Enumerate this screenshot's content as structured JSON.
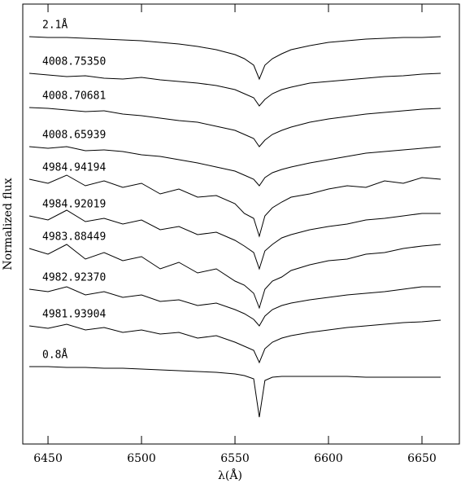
{
  "chart_data": {
    "type": "line",
    "xlabel": "λ(Å)",
    "ylabel": "Normalized flux",
    "xlim": [
      6436.5,
      6670
    ],
    "ylim": [
      0,
      540
    ],
    "xticks": [
      6450,
      6500,
      6550,
      6600,
      6650
    ],
    "x": [
      6440,
      6450,
      6460,
      6470,
      6480,
      6490,
      6500,
      6510,
      6520,
      6530,
      6540,
      6550,
      6555,
      6560,
      6563,
      6566,
      6570,
      6575,
      6580,
      6590,
      6600,
      6610,
      6620,
      6630,
      6640,
      6650,
      6660
    ],
    "series": [
      {
        "name": "2.1Å",
        "color": "#000000",
        "values": [
          500,
          499,
          499,
          498,
          497,
          496,
          495,
          493,
          491,
          488,
          484,
          478,
          473,
          465,
          448,
          465,
          473,
          479,
          484,
          489,
          493,
          495,
          497,
          498,
          499,
          499,
          500
        ]
      },
      {
        "name": "4008.75350",
        "color": "#000000",
        "values": [
          455,
          453,
          451,
          452,
          449,
          448,
          450,
          447,
          445,
          443,
          440,
          435,
          430,
          425,
          415,
          423,
          430,
          435,
          438,
          443,
          445,
          447,
          449,
          451,
          452,
          454,
          455
        ]
      },
      {
        "name": "4008.70681",
        "color": "#000000",
        "values": [
          413,
          412,
          410,
          408,
          409,
          405,
          403,
          400,
          397,
          395,
          390,
          385,
          380,
          375,
          365,
          373,
          380,
          385,
          389,
          395,
          399,
          402,
          405,
          407,
          409,
          411,
          412
        ]
      },
      {
        "name": "4008.65939",
        "color": "#000000",
        "values": [
          365,
          363,
          365,
          360,
          361,
          359,
          355,
          353,
          349,
          345,
          340,
          335,
          330,
          325,
          317,
          327,
          333,
          337,
          340,
          345,
          349,
          353,
          357,
          359,
          361,
          363,
          365
        ]
      },
      {
        "name": "4984.94194",
        "color": "#000000",
        "values": [
          325,
          320,
          330,
          317,
          323,
          315,
          320,
          307,
          313,
          303,
          305,
          295,
          283,
          277,
          255,
          280,
          290,
          297,
          303,
          307,
          313,
          317,
          315,
          323,
          320,
          327,
          325
        ]
      },
      {
        "name": "4984.92019",
        "color": "#000000",
        "values": [
          280,
          275,
          287,
          273,
          277,
          270,
          275,
          263,
          267,
          257,
          260,
          250,
          243,
          235,
          215,
          237,
          245,
          253,
          257,
          263,
          267,
          270,
          275,
          277,
          280,
          283,
          283
        ]
      },
      {
        "name": "4983.88449",
        "color": "#000000",
        "values": [
          240,
          233,
          245,
          227,
          235,
          225,
          230,
          215,
          223,
          210,
          215,
          200,
          195,
          185,
          167,
          190,
          200,
          205,
          213,
          220,
          225,
          227,
          233,
          235,
          240,
          243,
          245
        ]
      },
      {
        "name": "4982.92370",
        "color": "#000000",
        "values": [
          190,
          187,
          193,
          183,
          187,
          180,
          183,
          175,
          177,
          170,
          173,
          165,
          160,
          153,
          145,
          157,
          165,
          170,
          173,
          177,
          180,
          183,
          185,
          187,
          190,
          193,
          193
        ]
      },
      {
        "name": "4981.93904",
        "color": "#000000",
        "values": [
          145,
          142,
          147,
          140,
          143,
          137,
          140,
          135,
          137,
          130,
          133,
          125,
          120,
          115,
          100,
          117,
          125,
          130,
          133,
          137,
          140,
          143,
          145,
          147,
          149,
          150,
          152
        ]
      },
      {
        "name": "0.8Å",
        "color": "#000000",
        "values": [
          95,
          95,
          94,
          94,
          93,
          93,
          92,
          91,
          90,
          89,
          88,
          86,
          84,
          80,
          33,
          78,
          82,
          83,
          83,
          83,
          83,
          83,
          82,
          82,
          82,
          82,
          82
        ]
      }
    ]
  }
}
